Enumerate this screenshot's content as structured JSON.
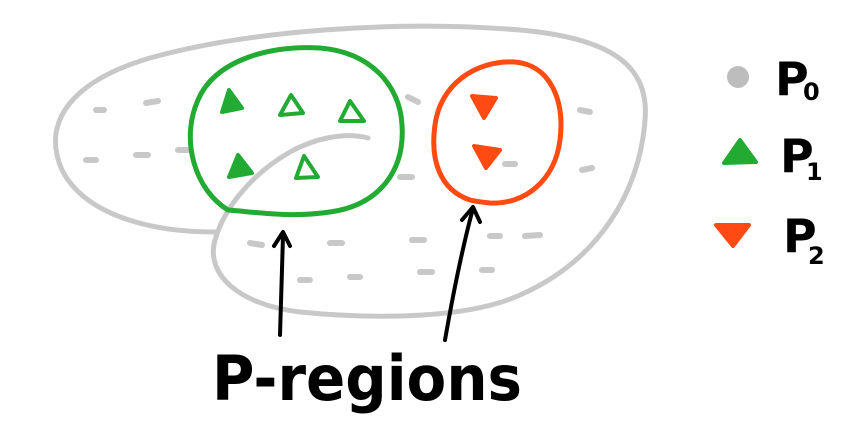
{
  "colors": {
    "background": "#ffffff",
    "outline": "#c8c8c8",
    "dot": "#bdbdbd",
    "p1": "#22aa33",
    "p2": "#ff4a12",
    "ink": "#000000"
  },
  "legend": {
    "items": [
      {
        "symbol": "circle",
        "label": "P",
        "subscript": "0",
        "color": "#bdbdbd"
      },
      {
        "symbol": "triangle-up",
        "label": "P",
        "subscript": "1",
        "color": "#22aa33"
      },
      {
        "symbol": "triangle-down",
        "label": "P",
        "subscript": "2",
        "color": "#ff4a12"
      }
    ]
  },
  "annotation": {
    "label": "P-regions"
  }
}
